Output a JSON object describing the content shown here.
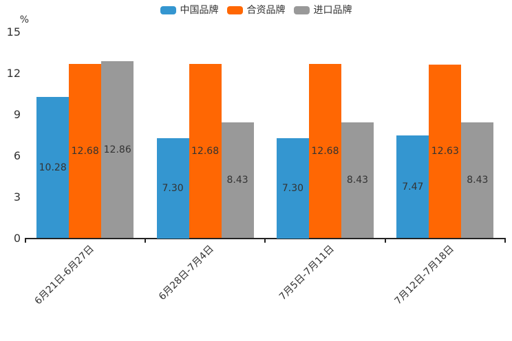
{
  "chart_data": {
    "type": "bar",
    "ylabel": "%",
    "categories": [
      "6月21日-6月27日",
      "6月28日-7月4日",
      "7月5日-7月11日",
      "7月12日-7月18日"
    ],
    "series": [
      {
        "name": "中国品牌",
        "color": "#3496d0",
        "values": [
          10.28,
          7.3,
          7.3,
          7.47
        ],
        "value_labels": [
          "10.28",
          "7.30",
          "7.30",
          "7.47"
        ]
      },
      {
        "name": "合资品牌",
        "color": "#ff6703",
        "values": [
          12.68,
          12.68,
          12.68,
          12.63
        ],
        "value_labels": [
          "12.68",
          "12.68",
          "12.68",
          "12.63"
        ]
      },
      {
        "name": "进口品牌",
        "color": "#999999",
        "values": [
          12.86,
          8.43,
          8.43,
          8.43
        ],
        "value_labels": [
          "12.86",
          "8.43",
          "8.43",
          "8.43"
        ]
      }
    ],
    "yticks": [
      0,
      3,
      6,
      9,
      12,
      15
    ],
    "ylim": [
      0,
      15
    ],
    "grid": false,
    "legend_position": "top",
    "text_color": "#333333",
    "axis_color": "#222222"
  }
}
